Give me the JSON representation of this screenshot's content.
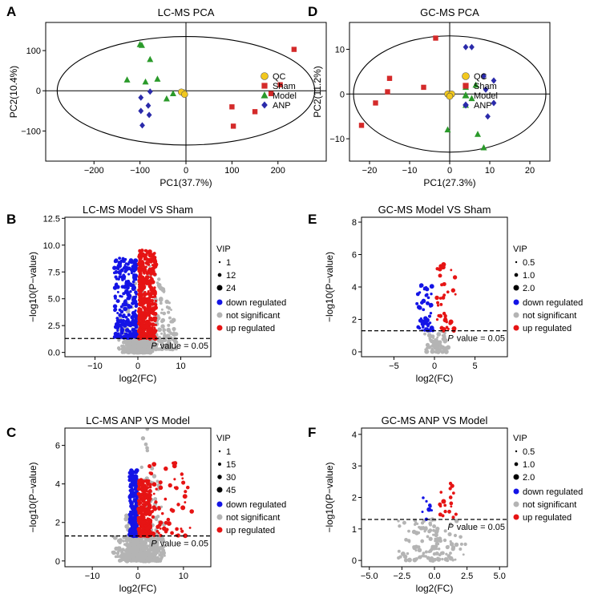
{
  "colors": {
    "qc": "#f2c81e",
    "sham": "#d42a2a",
    "model": "#2a9a2a",
    "anp": "#2a2aaa",
    "down": "#1414e6",
    "up": "#e61414",
    "ns": "#b4b4b4"
  },
  "chart_data": [
    {
      "type": "scatter",
      "panel": "A",
      "title": "LC-MS PCA",
      "xlabel": "PC1(37.7%)",
      "ylabel": "PC2(10.4%)",
      "xlim": [
        -305,
        305
      ],
      "ylim": [
        -175,
        170
      ],
      "xticks": [
        -200,
        -100,
        0,
        100,
        200
      ],
      "xtick_labels": [
        "−200",
        "−100",
        "0",
        "100",
        "200"
      ],
      "yticks": [
        -100,
        0,
        100
      ],
      "ytick_labels": [
        "−100",
        "0",
        "100"
      ],
      "ellipse": {
        "cx": 0,
        "cy": 0,
        "rx": 280,
        "ry": 135
      },
      "legend": [
        "QC",
        "Sham",
        "Model",
        "ANP"
      ],
      "series": [
        {
          "name": "QC",
          "marker": "circle",
          "points": [
            [
              -5,
              -5
            ],
            [
              -10,
              -3
            ],
            [
              -3,
              -9
            ]
          ]
        },
        {
          "name": "Sham",
          "marker": "square",
          "points": [
            [
              235,
              103
            ],
            [
              205,
              15
            ],
            [
              185,
              -7
            ],
            [
              150,
              -52
            ],
            [
              100,
              -40
            ],
            [
              103,
              -88
            ]
          ]
        },
        {
          "name": "Model",
          "marker": "triangle",
          "points": [
            [
              -100,
              115
            ],
            [
              -96,
              113
            ],
            [
              -78,
              78
            ],
            [
              -128,
              27
            ],
            [
              -88,
              22
            ],
            [
              -62,
              29
            ],
            [
              -28,
              -7
            ],
            [
              -42,
              -20
            ]
          ]
        },
        {
          "name": "ANP",
          "marker": "diamond",
          "points": [
            [
              -78,
              -2
            ],
            [
              -98,
              -17
            ],
            [
              -82,
              -37
            ],
            [
              -98,
              -50
            ],
            [
              -80,
              -60
            ],
            [
              -95,
              -86
            ]
          ]
        }
      ]
    },
    {
      "type": "scatter",
      "panel": "D",
      "title": "GC-MS PCA",
      "xlabel": "PC1(27.3%)",
      "ylabel": "PC2(11.2%)",
      "xlim": [
        -25,
        25
      ],
      "ylim": [
        -15,
        16
      ],
      "xticks": [
        -20,
        -10,
        0,
        10,
        20
      ],
      "xtick_labels": [
        "−20",
        "−10",
        "0",
        "10",
        "20"
      ],
      "yticks": [
        -10,
        0,
        10
      ],
      "ytick_labels": [
        "−10",
        "0",
        "10"
      ],
      "ellipse": {
        "cx": 0,
        "cy": 0,
        "rx": 24,
        "ry": 13
      },
      "legend": [
        "QC",
        "Sham",
        "Model",
        "ANP"
      ],
      "series": [
        {
          "name": "QC",
          "marker": "circle",
          "points": [
            [
              -0.5,
              0
            ],
            [
              0.5,
              0
            ],
            [
              0,
              -0.5
            ]
          ]
        },
        {
          "name": "Sham",
          "marker": "square",
          "points": [
            [
              -3.5,
              12.5
            ],
            [
              -15,
              3.5
            ],
            [
              -15.5,
              0.5
            ],
            [
              -6.5,
              1.5
            ],
            [
              -18.5,
              -2
            ],
            [
              -22,
              -7
            ]
          ]
        },
        {
          "name": "Model",
          "marker": "triangle",
          "points": [
            [
              6.5,
              2
            ],
            [
              4,
              1.5
            ],
            [
              5.5,
              -1
            ],
            [
              4,
              -2.5
            ],
            [
              -0.5,
              -8
            ],
            [
              7,
              -9
            ],
            [
              8.5,
              -12
            ]
          ]
        },
        {
          "name": "ANP",
          "marker": "diamond",
          "points": [
            [
              4,
              10.5
            ],
            [
              5.5,
              10.5
            ],
            [
              8.5,
              4
            ],
            [
              11,
              3
            ],
            [
              9,
              1
            ],
            [
              11,
              -2
            ],
            [
              9.5,
              -5
            ]
          ]
        }
      ]
    },
    {
      "type": "scatter",
      "panel": "B",
      "title": "LC-MS Model VS Sham",
      "xlabel": "log2(FC)",
      "ylabel": "−log10(P−value)",
      "xlim": [
        -17,
        17
      ],
      "ylim": [
        -0.4,
        12.6
      ],
      "xticks": [
        -10,
        0,
        10
      ],
      "xtick_labels": [
        "−10",
        "0",
        "10"
      ],
      "yticks": [
        0,
        2.5,
        5,
        7.5,
        10,
        12.5
      ],
      "ytick_labels": [
        "0.0",
        "2.5",
        "5.0",
        "7.5",
        "10.0",
        "12.5"
      ],
      "threshold": 1.3,
      "threshold_text_italic": "P",
      "threshold_text": "value = 0.05",
      "vip_title": "VIP",
      "vip_sizes": [
        "1",
        "12",
        "24"
      ],
      "legend": [
        "down regulated",
        "not significant",
        "up regulated"
      ],
      "regions": [
        {
          "group": "ns_base",
          "xmin": -3.5,
          "xmax": 3.5,
          "ymin": 0,
          "ymax": 1.3,
          "count": 500
        },
        {
          "group": "down",
          "xmin": -5.5,
          "xmax": -0.3,
          "ymin": 1.3,
          "ymax": 8.8,
          "count": 240
        },
        {
          "group": "up",
          "xmin": 0.3,
          "xmax": 4.2,
          "ymin": 1.3,
          "ymax": 9.5,
          "count": 420
        },
        {
          "group": "ns",
          "xmin": -4.5,
          "xmax": 9,
          "ymin": 0.3,
          "ymax": 7,
          "count": 240
        }
      ]
    },
    {
      "type": "scatter",
      "panel": "E",
      "title": "GC-MS Model VS Sham",
      "xlabel": "log2(FC)",
      "ylabel": "−log10(P−value)",
      "xlim": [
        -9,
        9
      ],
      "ylim": [
        -0.3,
        8.3
      ],
      "xticks": [
        -5,
        0,
        5
      ],
      "xtick_labels": [
        "−5",
        "0",
        "5"
      ],
      "yticks": [
        0,
        2,
        4,
        6,
        8
      ],
      "ytick_labels": [
        "0",
        "2",
        "4",
        "6",
        "8"
      ],
      "threshold": 1.3,
      "threshold_text_italic": "P",
      "threshold_text": "value = 0.05",
      "vip_title": "VIP",
      "vip_sizes": [
        "0.5",
        "1.0",
        "2.0"
      ],
      "legend": [
        "down regulated",
        "not significant",
        "up regulated"
      ],
      "regions": [
        {
          "group": "ns_base",
          "xmin": -1.5,
          "xmax": 2.2,
          "ymin": 0,
          "ymax": 1.3,
          "count": 70
        },
        {
          "group": "down",
          "xmin": -2.2,
          "xmax": -0.2,
          "ymin": 1.3,
          "ymax": 4.1,
          "count": 50
        },
        {
          "group": "up",
          "xmin": 0.3,
          "xmax": 2.6,
          "ymin": 1.3,
          "ymax": 5.5,
          "count": 40
        }
      ]
    },
    {
      "type": "scatter",
      "panel": "C",
      "title": "LC-MS ANP VS Model",
      "xlabel": "log2(FC)",
      "ylabel": "−log10(P−value)",
      "xlim": [
        -16,
        16
      ],
      "ylim": [
        -0.3,
        6.9
      ],
      "xticks": [
        -10,
        0,
        10
      ],
      "xtick_labels": [
        "−10",
        "0",
        "10"
      ],
      "yticks": [
        0,
        2,
        4,
        6
      ],
      "ytick_labels": [
        "0",
        "2",
        "4",
        "6"
      ],
      "threshold": 1.3,
      "threshold_text_italic": "P",
      "threshold_text": "value = 0.05",
      "vip_title": "VIP",
      "vip_sizes": [
        "1",
        "15",
        "30",
        "45"
      ],
      "legend": [
        "down regulated",
        "not significant",
        "up regulated"
      ],
      "regions": [
        {
          "group": "ns_base",
          "xmin": -5,
          "xmax": 6,
          "ymin": 0,
          "ymax": 1.3,
          "count": 450
        },
        {
          "group": "down",
          "xmin": -1.8,
          "xmax": -0.2,
          "ymin": 1.3,
          "ymax": 4.7,
          "count": 200
        },
        {
          "group": "up",
          "xmin": 0.2,
          "xmax": 2.8,
          "ymin": 1.3,
          "ymax": 4.2,
          "count": 220
        },
        {
          "group": "up",
          "xmin": 2.5,
          "xmax": 12,
          "ymin": 1.3,
          "ymax": 5.2,
          "count": 70
        },
        {
          "group": "ns",
          "xmin": -3,
          "xmax": 6,
          "ymin": 0.3,
          "ymax": 5.5,
          "count": 120
        }
      ]
    },
    {
      "type": "scatter",
      "panel": "F",
      "title": "GC-MS ANP VS Model",
      "xlabel": "log2(FC)",
      "ylabel": "−log10(P−value)",
      "xlim": [
        -5.6,
        5.6
      ],
      "ylim": [
        -0.2,
        4.2
      ],
      "xticks": [
        -5,
        -2.5,
        0,
        2.5,
        5
      ],
      "xtick_labels": [
        "−5.0",
        "−2.5",
        "0.0",
        "2.5",
        "5.0"
      ],
      "yticks": [
        0,
        1,
        2,
        3,
        4
      ],
      "ytick_labels": [
        "0",
        "1",
        "2",
        "3",
        "4"
      ],
      "threshold": 1.3,
      "threshold_text_italic": "P",
      "threshold_text": "value = 0.05",
      "vip_title": "VIP",
      "vip_sizes": [
        "0.5",
        "1.0",
        "2.0"
      ],
      "legend": [
        "down regulated",
        "not significant",
        "up regulated"
      ],
      "regions": [
        {
          "group": "ns_base",
          "xmin": -2.6,
          "xmax": 2.2,
          "ymin": 0,
          "ymax": 1.3,
          "count": 130
        },
        {
          "group": "down",
          "xmin": -1.0,
          "xmax": -0.2,
          "ymin": 1.3,
          "ymax": 2.0,
          "count": 8
        },
        {
          "group": "up",
          "xmin": 0.3,
          "xmax": 1.7,
          "ymin": 1.3,
          "ymax": 2.5,
          "count": 18
        }
      ]
    }
  ]
}
